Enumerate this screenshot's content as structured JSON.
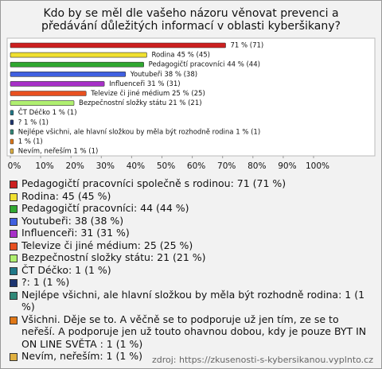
{
  "chart_data": {
    "type": "bar",
    "orientation": "horizontal",
    "title": "Kdo by se měl dle vašeho názoru věnovat prevenci a předávání důležitých informací v oblasti kyberšikany?",
    "values": [
      71,
      45,
      44,
      38,
      31,
      25,
      21,
      1,
      1,
      1,
      1,
      1
    ],
    "value_labels": [
      "71 % (71)",
      "Rodina 45 % (45)",
      "Pedagogičtí pracovníci 44 % (44)",
      "Youtubeři 38 % (38)",
      "Influenceři 31 % (31)",
      "Televize či jiné médium 25 % (25)",
      "Bezpečnostní složky státu 21 % (21)",
      "ČT Déčko 1 % (1)",
      "? 1 % (1)",
      "Nejlépe všichni, ale hlavní složkou by měla být rozhodně rodina 1 % (1)",
      "1 % (1)",
      "Nevím, neřeším 1 % (1)"
    ],
    "legend": [
      "Pedagogičtí pracovníci společně s rodinou: 71 (71 %)",
      "Rodina: 45 (45 %)",
      "Pedagogičtí pracovníci: 44 (44 %)",
      "Youtubeři: 38 (38 %)",
      "Influenceři: 31 (31 %)",
      "Televize či jiné médium: 25 (25 %)",
      "Bezpečnostní složky státu: 21 (21 %)",
      "ČT Déčko: 1 (1 %)",
      "?: 1 (1 %)",
      "Nejlépe všichni, ale hlavní složkou by měla být rozhodně rodina: 1 (1 %)",
      "Všichni. Děje se to. A věčně se to podporuje už jen tím, ze se to neřeší. A podporuje jen už touto ohavnou dobou, kdy je pouze BYT IN ON LINE SVĚTA : 1 (1 %)",
      "Nevím, neřeším: 1 (1 %)"
    ],
    "colors": [
      "#cc2020",
      "#f0e030",
      "#30a830",
      "#4060e0",
      "#a830c8",
      "#e85020",
      "#b0f070",
      "#207888",
      "#1c3470",
      "#308878",
      "#e07818",
      "#e0b040"
    ],
    "xlim": [
      0,
      100
    ],
    "xticks": [
      {
        "value": 0,
        "label": "0%"
      },
      {
        "value": 10,
        "label": "10%"
      },
      {
        "value": 20,
        "label": "20%"
      },
      {
        "value": 30,
        "label": "30%"
      },
      {
        "value": 40,
        "label": "40%"
      },
      {
        "value": 50,
        "label": "50%"
      },
      {
        "value": 60,
        "label": "60%"
      },
      {
        "value": 70,
        "label": "70%"
      },
      {
        "value": 80,
        "label": "80%"
      },
      {
        "value": 90,
        "label": "90%"
      },
      {
        "value": 100,
        "label": "100%"
      }
    ],
    "source": "zdroj: https://zkusenosti-s-kybersikanou.vyplnto.cz"
  }
}
